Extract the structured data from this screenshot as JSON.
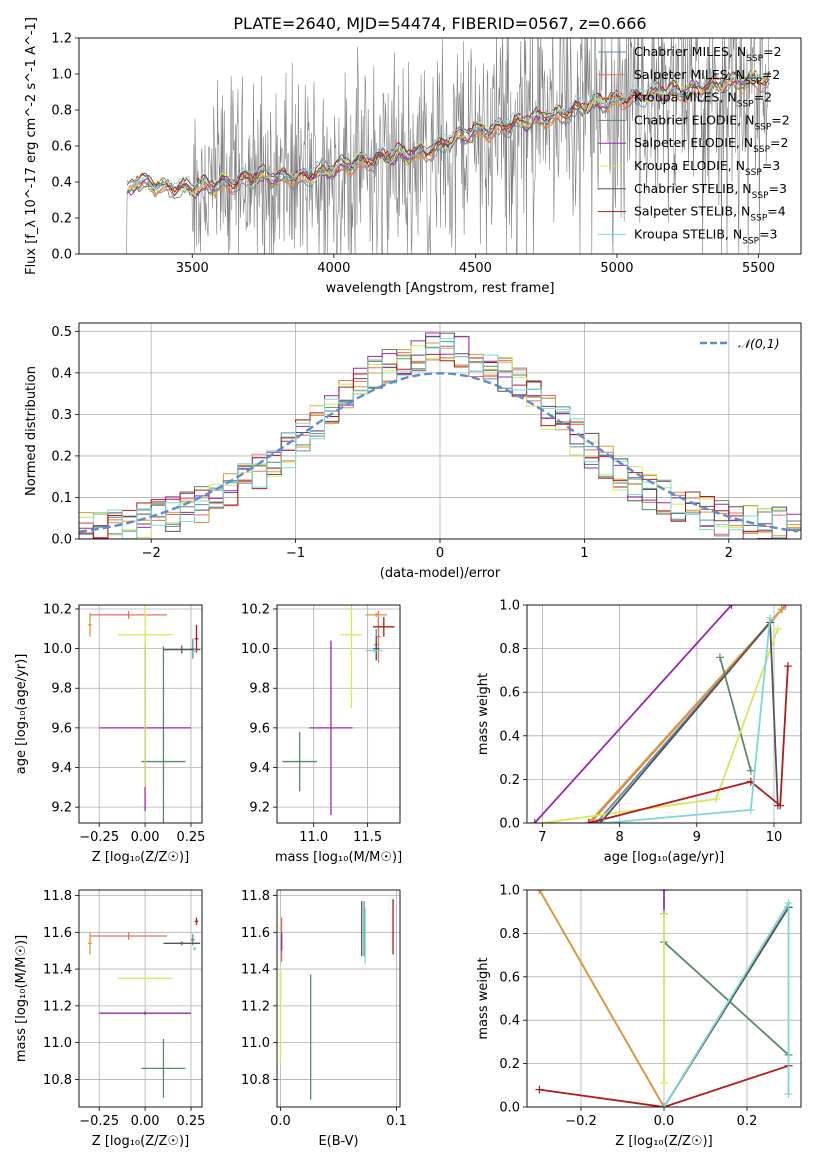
{
  "figure": {
    "title": "PLATE=2640, MJD=54474, FIBERID=0567, z=0.666"
  },
  "models": [
    {
      "name": "Chabrier MILES",
      "nssp": "2",
      "color": "#5f8fa8"
    },
    {
      "name": "Salpeter MILES",
      "nssp": "2",
      "color": "#e8705a"
    },
    {
      "name": "Kroupa MILES",
      "nssp": "2",
      "color": "#d89a3c"
    },
    {
      "name": "Chabrier ELODIE",
      "nssp": "2",
      "color": "#5b8a6a"
    },
    {
      "name": "Salpeter ELODIE",
      "nssp": "2",
      "color": "#9b27b0"
    },
    {
      "name": "Kroupa ELODIE",
      "nssp": "3",
      "color": "#d4e85a"
    },
    {
      "name": "Chabrier STELIB",
      "nssp": "3",
      "color": "#555555"
    },
    {
      "name": "Salpeter STELIB",
      "nssp": "4",
      "color": "#b01c1c"
    },
    {
      "name": "Kroupa STELIB",
      "nssp": "3",
      "color": "#7fd8d8"
    }
  ],
  "chart_data": [
    {
      "id": "spectrum",
      "type": "line",
      "xlabel": "wavelength [Angstrom, rest frame]",
      "ylabel": "Flux [f_λ 10^-17 erg cm^-2 s^-1 A^-1]",
      "xlim": [
        3100,
        5650
      ],
      "ylim": [
        0,
        1.2
      ],
      "xticks": [
        "3500",
        "4000",
        "4500",
        "5000",
        "5500"
      ],
      "yticks": [
        "0.0",
        "0.2",
        "0.4",
        "0.6",
        "0.8",
        "1.0",
        "1.2"
      ],
      "grid": false,
      "legend_position": "right",
      "data_color": "#808080",
      "model_anchor_x": [
        3270,
        3300,
        3500,
        3700,
        3900,
        4000,
        4100,
        4300,
        4500,
        4700,
        4850,
        5000,
        5200,
        5400,
        5530
      ],
      "model_anchor_y": [
        0.34,
        0.4,
        0.36,
        0.42,
        0.43,
        0.47,
        0.52,
        0.56,
        0.68,
        0.74,
        0.8,
        0.86,
        0.9,
        0.95,
        0.98
      ],
      "data_x_range": [
        3270,
        5540
      ],
      "data_note_gap": [
        3520,
        4380
      ]
    },
    {
      "id": "residual-hist",
      "type": "bar",
      "xlabel": "(data-model)/error",
      "ylabel": "Normed distribution",
      "xlim": [
        -2.5,
        2.5
      ],
      "ylim": [
        0,
        0.52
      ],
      "xticks": [
        "−2",
        "−1",
        "0",
        "1",
        "2"
      ],
      "xtick_values": [
        -2,
        -1,
        0,
        1,
        2
      ],
      "yticks": [
        "0.0",
        "0.1",
        "0.2",
        "0.3",
        "0.4",
        "0.5"
      ],
      "ytick_values": [
        0,
        0.1,
        0.2,
        0.3,
        0.4,
        0.5
      ],
      "grid": true,
      "bin_width": 0.1,
      "reference_curve": {
        "name": "𝒩(0,1)",
        "color": "#5b8bd0",
        "mean": 0,
        "sd": 1
      },
      "legend_position": "top-right"
    },
    {
      "id": "age-vs-Z",
      "type": "scatter",
      "xlabel": "Z [log₁₀(Z/Z☉)]",
      "ylabel": "age  [log₁₀(age/yr)]",
      "xlim": [
        -0.36,
        0.31
      ],
      "ylim": [
        9.12,
        10.22
      ],
      "xticks": [
        "−0.25",
        "0.00",
        "0.25"
      ],
      "xtick_values": [
        -0.25,
        0,
        0.25
      ],
      "yticks": [
        "9.2",
        "9.4",
        "9.6",
        "9.8",
        "10.0",
        "10.2"
      ],
      "ytick_values": [
        9.2,
        9.4,
        9.6,
        9.8,
        10.0,
        10.2
      ],
      "grid": true,
      "points": [
        {
          "model": 0,
          "x": 0.26,
          "y": 10.0,
          "xerr": 0.01,
          "yerr": 0.05
        },
        {
          "model": 1,
          "x": -0.09,
          "y": 10.17,
          "xerr": 0.21,
          "yerr": 0.02
        },
        {
          "model": 2,
          "x": -0.3,
          "y": 10.12,
          "xerr": 0.01,
          "yerr": 0.06
        },
        {
          "model": 3,
          "x": 0.1,
          "y": 9.43,
          "xerr": 0.12,
          "yerr": 0.58
        },
        {
          "model": 4,
          "x": 0.0,
          "y": 9.6,
          "xerr": 0.25,
          "yerr": 0.42
        },
        {
          "model": 5,
          "x": 0.0,
          "y": 10.07,
          "xerr": 0.15,
          "yerr": 0.77
        },
        {
          "model": 6,
          "x": 0.2,
          "y": 9.995,
          "xerr": 0.1,
          "yerr": 0.02
        },
        {
          "model": 7,
          "x": 0.28,
          "y": 10.05,
          "xerr": 0.01,
          "yerr": 0.07
        },
        {
          "model": 8,
          "x": 0.27,
          "y": 9.99,
          "xerr": 0.01,
          "yerr": 0.01
        }
      ]
    },
    {
      "id": "age-vs-mass",
      "type": "scatter",
      "xlabel": "mass [log₁₀(M/M☉)]",
      "ylabel": "",
      "xlim": [
        10.66,
        11.8
      ],
      "ylim": [
        9.12,
        10.22
      ],
      "xticks": [
        "11.0",
        "11.5"
      ],
      "xtick_values": [
        11.0,
        11.5
      ],
      "yticks": [
        "9.2",
        "9.4",
        "9.6",
        "9.8",
        "10.0",
        "10.2"
      ],
      "ytick_values": [
        9.2,
        9.4,
        9.6,
        9.8,
        10.0,
        10.2
      ],
      "grid": true,
      "points": [
        {
          "model": 0,
          "x": 11.58,
          "y": 10.02,
          "xerr": 0.02,
          "yerr": 0.08
        },
        {
          "model": 1,
          "x": 11.6,
          "y": 10.06,
          "xerr": 0.02,
          "yerr": 0.13
        },
        {
          "model": 2,
          "x": 11.58,
          "y": 10.17,
          "xerr": 0.1,
          "yerr": 0.01
        },
        {
          "model": 3,
          "x": 10.87,
          "y": 9.43,
          "xerr": 0.16,
          "yerr": 0.15
        },
        {
          "model": 4,
          "x": 11.16,
          "y": 9.6,
          "xerr": 0.2,
          "yerr": 0.44
        },
        {
          "model": 5,
          "x": 11.35,
          "y": 10.07,
          "xerr": 0.1,
          "yerr": 0.37
        },
        {
          "model": 6,
          "x": 11.58,
          "y": 10.0,
          "xerr": 0.03,
          "yerr": 0.06
        },
        {
          "model": 7,
          "x": 11.65,
          "y": 10.11,
          "xerr": 0.1,
          "yerr": 0.05
        },
        {
          "model": 8,
          "x": 11.56,
          "y": 9.99,
          "xerr": 0.08,
          "yerr": 0.01
        }
      ]
    },
    {
      "id": "weight-vs-age",
      "type": "line",
      "xlabel": "age  [log₁₀(age/yr)]",
      "ylabel": "mass weight",
      "xlim": [
        6.8,
        10.35
      ],
      "ylim": [
        0,
        1.0
      ],
      "xticks": [
        "7",
        "8",
        "9",
        "10"
      ],
      "xtick_values": [
        7,
        8,
        9,
        10
      ],
      "yticks": [
        "0.0",
        "0.2",
        "0.4",
        "0.6",
        "0.8",
        "1.0"
      ],
      "ytick_values": [
        0,
        0.2,
        0.4,
        0.6,
        0.8,
        1.0
      ],
      "grid": true,
      "series": [
        {
          "model": 0,
          "x": [
            7.7,
            10.1
          ],
          "y": [
            0.0,
            0.98
          ]
        },
        {
          "model": 1,
          "x": [
            7.62,
            10.15
          ],
          "y": [
            0.0,
            1.0
          ]
        },
        {
          "model": 2,
          "x": [
            7.6,
            10.1
          ],
          "y": [
            0.0,
            0.98
          ]
        },
        {
          "model": 3,
          "x": [
            9.3,
            9.7
          ],
          "y": [
            0.76,
            0.24
          ]
        },
        {
          "model": 4,
          "x": [
            6.9,
            9.45
          ],
          "y": [
            0.0,
            1.0
          ]
        },
        {
          "model": 5,
          "x": [
            7.0,
            9.25,
            10.05
          ],
          "y": [
            0.0,
            0.11,
            0.89
          ]
        },
        {
          "model": 6,
          "x": [
            7.75,
            9.95,
            10.05
          ],
          "y": [
            0.0,
            0.92,
            0.08
          ]
        },
        {
          "model": 7,
          "x": [
            7.6,
            9.7,
            10.08,
            10.18
          ],
          "y": [
            0.0,
            0.19,
            0.08,
            0.72
          ]
        },
        {
          "model": 8,
          "x": [
            7.8,
            9.7,
            9.95
          ],
          "y": [
            0.0,
            0.06,
            0.94
          ]
        }
      ]
    },
    {
      "id": "mass-vs-Z",
      "type": "scatter",
      "xlabel": "Z [log₁₀(Z/Z☉)]",
      "ylabel": "mass [log₁₀(M/M☉)]",
      "xlim": [
        -0.36,
        0.31
      ],
      "ylim": [
        10.65,
        11.83
      ],
      "xticks": [
        "−0.25",
        "0.00",
        "0.25"
      ],
      "xtick_values": [
        -0.25,
        0,
        0.25
      ],
      "yticks": [
        "10.8",
        "11.0",
        "11.2",
        "11.4",
        "11.6",
        "11.8"
      ],
      "ytick_values": [
        10.8,
        11.0,
        11.2,
        11.4,
        11.6,
        11.8
      ],
      "grid": true,
      "points": [
        {
          "model": 0,
          "x": 0.26,
          "y": 11.56,
          "xerr": 0.01,
          "yerr": 0.03
        },
        {
          "model": 1,
          "x": -0.09,
          "y": 11.58,
          "xerr": 0.21,
          "yerr": 0.02
        },
        {
          "model": 2,
          "x": -0.3,
          "y": 11.54,
          "xerr": 0.01,
          "yerr": 0.06
        },
        {
          "model": 3,
          "x": 0.1,
          "y": 10.86,
          "xerr": 0.12,
          "yerr": 0.16
        },
        {
          "model": 4,
          "x": 0.0,
          "y": 11.16,
          "xerr": 0.25,
          "yerr": 0.01
        },
        {
          "model": 5,
          "x": 0.0,
          "y": 11.35,
          "xerr": 0.15,
          "yerr": 0.02
        },
        {
          "model": 6,
          "x": 0.2,
          "y": 11.54,
          "xerr": 0.1,
          "yerr": 0.01
        },
        {
          "model": 7,
          "x": 0.28,
          "y": 11.66,
          "xerr": 0.01,
          "yerr": 0.02
        },
        {
          "model": 8,
          "x": 0.27,
          "y": 11.51,
          "xerr": 0.01,
          "yerr": 0.01
        }
      ]
    },
    {
      "id": "mass-vs-ebv",
      "type": "scatter",
      "xlabel": "E(B-V)",
      "ylabel": "",
      "xlim": [
        -0.003,
        0.103
      ],
      "ylim": [
        10.65,
        11.83
      ],
      "xticks": [
        "0.0",
        "0.1"
      ],
      "xtick_values": [
        0,
        0.1
      ],
      "yticks": [
        "10.8",
        "11.0",
        "11.2",
        "11.4",
        "11.6",
        "11.8"
      ],
      "ytick_values": [
        10.8,
        11.0,
        11.2,
        11.4,
        11.6,
        11.8
      ],
      "grid": true,
      "points": [
        {
          "model": 0,
          "x": 0.072,
          "y": 11.62,
          "xerr": 0.0,
          "yerr": 0.15
        },
        {
          "model": 1,
          "x": 0.001,
          "y": 11.56,
          "xerr": 0.0,
          "yerr": 0.12
        },
        {
          "model": 2,
          "x": 0.0,
          "y": 11.3,
          "xerr": 0.0,
          "yerr": 0.08
        },
        {
          "model": 3,
          "x": 0.026,
          "y": 11.03,
          "xerr": 0.0,
          "yerr": 0.34
        },
        {
          "model": 4,
          "x": 0.001,
          "y": 11.55,
          "xerr": 0.0,
          "yerr": 0.05
        },
        {
          "model": 5,
          "x": 0.0,
          "y": 11.15,
          "xerr": 0.0,
          "yerr": 0.27
        },
        {
          "model": 6,
          "x": 0.07,
          "y": 11.62,
          "xerr": 0.0,
          "yerr": 0.15
        },
        {
          "model": 7,
          "x": 0.097,
          "y": 11.63,
          "xerr": 0.0,
          "yerr": 0.15
        },
        {
          "model": 8,
          "x": 0.073,
          "y": 11.58,
          "xerr": 0.0,
          "yerr": 0.15
        }
      ]
    },
    {
      "id": "weight-vs-Z",
      "type": "line",
      "xlabel": "Z [log₁₀(Z/Z☉)]",
      "ylabel": "mass weight",
      "xlim": [
        -0.33,
        0.33
      ],
      "ylim": [
        0,
        1.0
      ],
      "xticks": [
        "−0.2",
        "0.0",
        "0.2"
      ],
      "xtick_values": [
        -0.2,
        0,
        0.2
      ],
      "yticks": [
        "0.0",
        "0.2",
        "0.4",
        "0.6",
        "0.8",
        "1.0"
      ],
      "ytick_values": [
        0,
        0.2,
        0.4,
        0.6,
        0.8,
        1.0
      ],
      "grid": true,
      "series": [
        {
          "model": 0,
          "x": [
            0.0,
            0.3
          ],
          "y": [
            0.0,
            0.92
          ]
        },
        {
          "model": 1,
          "x": [
            -0.3,
            0.0
          ],
          "y": [
            1.0,
            0.0
          ]
        },
        {
          "model": 2,
          "x": [
            -0.3,
            0.0
          ],
          "y": [
            1.0,
            0.0
          ]
        },
        {
          "model": 3,
          "x": [
            0.0,
            0.3
          ],
          "y": [
            0.76,
            0.24
          ]
        },
        {
          "model": 4,
          "x": [
            0.0,
            0.0
          ],
          "y": [
            0.89,
            1.0
          ]
        },
        {
          "model": 5,
          "x": [
            0.0,
            0.0
          ],
          "y": [
            0.11,
            0.89
          ]
        },
        {
          "model": 6,
          "x": [
            0.0,
            0.3
          ],
          "y": [
            0.0,
            0.92
          ]
        },
        {
          "model": 7,
          "x": [
            -0.3,
            0.0,
            0.3
          ],
          "y": [
            0.08,
            0.0,
            0.19
          ]
        },
        {
          "model": 8,
          "x": [
            0.0,
            0.3,
            0.3
          ],
          "y": [
            0.0,
            0.94,
            0.06
          ]
        }
      ]
    }
  ]
}
